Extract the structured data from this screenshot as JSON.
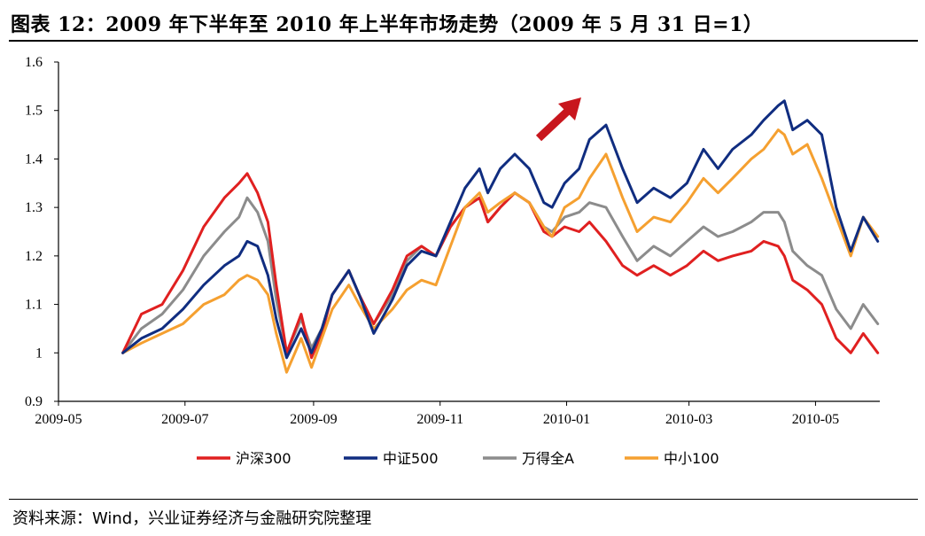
{
  "title": "图表 12：2009 年下半年至 2010 年上半年市场走势（2009 年 5 月 31 日=1）",
  "source": "资料来源：Wind，兴业证券经济与金融研究院整理",
  "chart_data": {
    "type": "line",
    "title": "图表 12：2009 年下半年至 2010 年上半年市场走势（2009 年 5 月 31 日=1）",
    "xlabel": "",
    "ylabel": "",
    "x_tick_labels": [
      "2009-05",
      "2009-07",
      "2009-09",
      "2009-11",
      "2010-01",
      "2010-03",
      "2010-05"
    ],
    "y_tick_labels": [
      "0.9",
      "1",
      "1.1",
      "1.2",
      "1.3",
      "1.4",
      "1.5",
      "1.6"
    ],
    "ylim": [
      0.9,
      1.6
    ],
    "grid": false,
    "legend_position": "bottom",
    "annotation": "red arrow pointing up-right",
    "series": [
      {
        "name": "沪深300",
        "color": "#e02020",
        "points": [
          [
            "2009-06-01",
            1.0
          ],
          [
            "2009-06-10",
            1.08
          ],
          [
            "2009-06-20",
            1.1
          ],
          [
            "2009-06-30",
            1.17
          ],
          [
            "2009-07-10",
            1.26
          ],
          [
            "2009-07-20",
            1.32
          ],
          [
            "2009-07-27",
            1.35
          ],
          [
            "2009-07-31",
            1.37
          ],
          [
            "2009-08-05",
            1.33
          ],
          [
            "2009-08-10",
            1.27
          ],
          [
            "2009-08-14",
            1.14
          ],
          [
            "2009-08-19",
            1.0
          ],
          [
            "2009-08-26",
            1.08
          ],
          [
            "2009-08-31",
            0.99
          ],
          [
            "2009-09-05",
            1.04
          ],
          [
            "2009-09-10",
            1.12
          ],
          [
            "2009-09-18",
            1.17
          ],
          [
            "2009-09-23",
            1.12
          ],
          [
            "2009-09-30",
            1.06
          ],
          [
            "2009-10-09",
            1.13
          ],
          [
            "2009-10-16",
            1.2
          ],
          [
            "2009-10-23",
            1.22
          ],
          [
            "2009-10-30",
            1.2
          ],
          [
            "2009-11-06",
            1.26
          ],
          [
            "2009-11-13",
            1.3
          ],
          [
            "2009-11-20",
            1.32
          ],
          [
            "2009-11-24",
            1.27
          ],
          [
            "2009-11-30",
            1.3
          ],
          [
            "2009-12-07",
            1.33
          ],
          [
            "2009-12-14",
            1.31
          ],
          [
            "2009-12-21",
            1.25
          ],
          [
            "2009-12-25",
            1.24
          ],
          [
            "2009-12-31",
            1.26
          ],
          [
            "2010-01-07",
            1.25
          ],
          [
            "2010-01-12",
            1.27
          ],
          [
            "2010-01-20",
            1.23
          ],
          [
            "2010-01-28",
            1.18
          ],
          [
            "2010-02-04",
            1.16
          ],
          [
            "2010-02-12",
            1.18
          ],
          [
            "2010-02-20",
            1.16
          ],
          [
            "2010-02-28",
            1.18
          ],
          [
            "2010-03-08",
            1.21
          ],
          [
            "2010-03-15",
            1.19
          ],
          [
            "2010-03-22",
            1.2
          ],
          [
            "2010-03-31",
            1.21
          ],
          [
            "2010-04-06",
            1.23
          ],
          [
            "2010-04-13",
            1.22
          ],
          [
            "2010-04-16",
            1.2
          ],
          [
            "2010-04-20",
            1.15
          ],
          [
            "2010-04-27",
            1.13
          ],
          [
            "2010-05-04",
            1.1
          ],
          [
            "2010-05-11",
            1.03
          ],
          [
            "2010-05-18",
            1.0
          ],
          [
            "2010-05-24",
            1.04
          ],
          [
            "2010-05-31",
            1.0
          ]
        ]
      },
      {
        "name": "中证500",
        "color": "#102d80",
        "points": [
          [
            "2009-06-01",
            1.0
          ],
          [
            "2009-06-10",
            1.03
          ],
          [
            "2009-06-20",
            1.05
          ],
          [
            "2009-06-30",
            1.09
          ],
          [
            "2009-07-10",
            1.14
          ],
          [
            "2009-07-20",
            1.18
          ],
          [
            "2009-07-27",
            1.2
          ],
          [
            "2009-07-31",
            1.23
          ],
          [
            "2009-08-05",
            1.22
          ],
          [
            "2009-08-10",
            1.16
          ],
          [
            "2009-08-14",
            1.07
          ],
          [
            "2009-08-19",
            0.99
          ],
          [
            "2009-08-26",
            1.05
          ],
          [
            "2009-08-31",
            1.0
          ],
          [
            "2009-09-05",
            1.05
          ],
          [
            "2009-09-10",
            1.12
          ],
          [
            "2009-09-18",
            1.17
          ],
          [
            "2009-09-23",
            1.12
          ],
          [
            "2009-09-30",
            1.04
          ],
          [
            "2009-10-09",
            1.11
          ],
          [
            "2009-10-16",
            1.18
          ],
          [
            "2009-10-23",
            1.21
          ],
          [
            "2009-10-30",
            1.2
          ],
          [
            "2009-11-06",
            1.27
          ],
          [
            "2009-11-13",
            1.34
          ],
          [
            "2009-11-20",
            1.38
          ],
          [
            "2009-11-24",
            1.33
          ],
          [
            "2009-11-30",
            1.38
          ],
          [
            "2009-12-07",
            1.41
          ],
          [
            "2009-12-14",
            1.38
          ],
          [
            "2009-12-21",
            1.31
          ],
          [
            "2009-12-25",
            1.3
          ],
          [
            "2009-12-31",
            1.35
          ],
          [
            "2010-01-07",
            1.38
          ],
          [
            "2010-01-12",
            1.44
          ],
          [
            "2010-01-20",
            1.47
          ],
          [
            "2010-01-28",
            1.38
          ],
          [
            "2010-02-04",
            1.31
          ],
          [
            "2010-02-12",
            1.34
          ],
          [
            "2010-02-20",
            1.32
          ],
          [
            "2010-02-28",
            1.35
          ],
          [
            "2010-03-08",
            1.42
          ],
          [
            "2010-03-15",
            1.38
          ],
          [
            "2010-03-22",
            1.42
          ],
          [
            "2010-03-31",
            1.45
          ],
          [
            "2010-04-06",
            1.48
          ],
          [
            "2010-04-13",
            1.51
          ],
          [
            "2010-04-16",
            1.52
          ],
          [
            "2010-04-20",
            1.46
          ],
          [
            "2010-04-27",
            1.48
          ],
          [
            "2010-05-04",
            1.45
          ],
          [
            "2010-05-11",
            1.3
          ],
          [
            "2010-05-18",
            1.21
          ],
          [
            "2010-05-24",
            1.28
          ],
          [
            "2010-05-31",
            1.23
          ]
        ]
      },
      {
        "name": "万得全A",
        "color": "#8c8c8c",
        "points": [
          [
            "2009-06-01",
            1.0
          ],
          [
            "2009-06-10",
            1.05
          ],
          [
            "2009-06-20",
            1.08
          ],
          [
            "2009-06-30",
            1.13
          ],
          [
            "2009-07-10",
            1.2
          ],
          [
            "2009-07-20",
            1.25
          ],
          [
            "2009-07-27",
            1.28
          ],
          [
            "2009-07-31",
            1.32
          ],
          [
            "2009-08-05",
            1.29
          ],
          [
            "2009-08-10",
            1.23
          ],
          [
            "2009-08-14",
            1.11
          ],
          [
            "2009-08-19",
            1.0
          ],
          [
            "2009-08-26",
            1.07
          ],
          [
            "2009-08-31",
            1.01
          ],
          [
            "2009-09-05",
            1.05
          ],
          [
            "2009-09-10",
            1.12
          ],
          [
            "2009-09-18",
            1.17
          ],
          [
            "2009-09-23",
            1.12
          ],
          [
            "2009-09-30",
            1.06
          ],
          [
            "2009-10-09",
            1.12
          ],
          [
            "2009-10-16",
            1.19
          ],
          [
            "2009-10-23",
            1.22
          ],
          [
            "2009-10-30",
            1.2
          ],
          [
            "2009-11-06",
            1.26
          ],
          [
            "2009-11-13",
            1.3
          ],
          [
            "2009-11-20",
            1.32
          ],
          [
            "2009-11-24",
            1.27
          ],
          [
            "2009-11-30",
            1.3
          ],
          [
            "2009-12-07",
            1.33
          ],
          [
            "2009-12-14",
            1.31
          ],
          [
            "2009-12-21",
            1.26
          ],
          [
            "2009-12-25",
            1.25
          ],
          [
            "2009-12-31",
            1.28
          ],
          [
            "2010-01-07",
            1.29
          ],
          [
            "2010-01-12",
            1.31
          ],
          [
            "2010-01-20",
            1.3
          ],
          [
            "2010-01-28",
            1.24
          ],
          [
            "2010-02-04",
            1.19
          ],
          [
            "2010-02-12",
            1.22
          ],
          [
            "2010-02-20",
            1.2
          ],
          [
            "2010-02-28",
            1.23
          ],
          [
            "2010-03-08",
            1.26
          ],
          [
            "2010-03-15",
            1.24
          ],
          [
            "2010-03-22",
            1.25
          ],
          [
            "2010-03-31",
            1.27
          ],
          [
            "2010-04-06",
            1.29
          ],
          [
            "2010-04-13",
            1.29
          ],
          [
            "2010-04-16",
            1.27
          ],
          [
            "2010-04-20",
            1.21
          ],
          [
            "2010-04-27",
            1.18
          ],
          [
            "2010-05-04",
            1.16
          ],
          [
            "2010-05-11",
            1.09
          ],
          [
            "2010-05-18",
            1.05
          ],
          [
            "2010-05-24",
            1.1
          ],
          [
            "2010-05-31",
            1.06
          ]
        ]
      },
      {
        "name": "中小100",
        "color": "#f5a030",
        "points": [
          [
            "2009-06-01",
            1.0
          ],
          [
            "2009-06-10",
            1.02
          ],
          [
            "2009-06-20",
            1.04
          ],
          [
            "2009-06-30",
            1.06
          ],
          [
            "2009-07-10",
            1.1
          ],
          [
            "2009-07-20",
            1.12
          ],
          [
            "2009-07-27",
            1.15
          ],
          [
            "2009-07-31",
            1.16
          ],
          [
            "2009-08-05",
            1.15
          ],
          [
            "2009-08-10",
            1.12
          ],
          [
            "2009-08-14",
            1.04
          ],
          [
            "2009-08-19",
            0.96
          ],
          [
            "2009-08-26",
            1.03
          ],
          [
            "2009-08-31",
            0.97
          ],
          [
            "2009-09-05",
            1.03
          ],
          [
            "2009-09-10",
            1.09
          ],
          [
            "2009-09-18",
            1.14
          ],
          [
            "2009-09-23",
            1.1
          ],
          [
            "2009-09-30",
            1.05
          ],
          [
            "2009-10-09",
            1.09
          ],
          [
            "2009-10-16",
            1.13
          ],
          [
            "2009-10-23",
            1.15
          ],
          [
            "2009-10-30",
            1.14
          ],
          [
            "2009-11-06",
            1.22
          ],
          [
            "2009-11-13",
            1.3
          ],
          [
            "2009-11-20",
            1.33
          ],
          [
            "2009-11-24",
            1.29
          ],
          [
            "2009-11-30",
            1.31
          ],
          [
            "2009-12-07",
            1.33
          ],
          [
            "2009-12-14",
            1.31
          ],
          [
            "2009-12-21",
            1.26
          ],
          [
            "2009-12-25",
            1.24
          ],
          [
            "2009-12-31",
            1.3
          ],
          [
            "2010-01-07",
            1.32
          ],
          [
            "2010-01-12",
            1.36
          ],
          [
            "2010-01-20",
            1.41
          ],
          [
            "2010-01-28",
            1.32
          ],
          [
            "2010-02-04",
            1.25
          ],
          [
            "2010-02-12",
            1.28
          ],
          [
            "2010-02-20",
            1.27
          ],
          [
            "2010-02-28",
            1.31
          ],
          [
            "2010-03-08",
            1.36
          ],
          [
            "2010-03-15",
            1.33
          ],
          [
            "2010-03-22",
            1.36
          ],
          [
            "2010-03-31",
            1.4
          ],
          [
            "2010-04-06",
            1.42
          ],
          [
            "2010-04-13",
            1.46
          ],
          [
            "2010-04-16",
            1.45
          ],
          [
            "2010-04-20",
            1.41
          ],
          [
            "2010-04-27",
            1.43
          ],
          [
            "2010-05-04",
            1.36
          ],
          [
            "2010-05-11",
            1.28
          ],
          [
            "2010-05-18",
            1.2
          ],
          [
            "2010-05-24",
            1.28
          ],
          [
            "2010-05-31",
            1.24
          ]
        ]
      }
    ]
  }
}
